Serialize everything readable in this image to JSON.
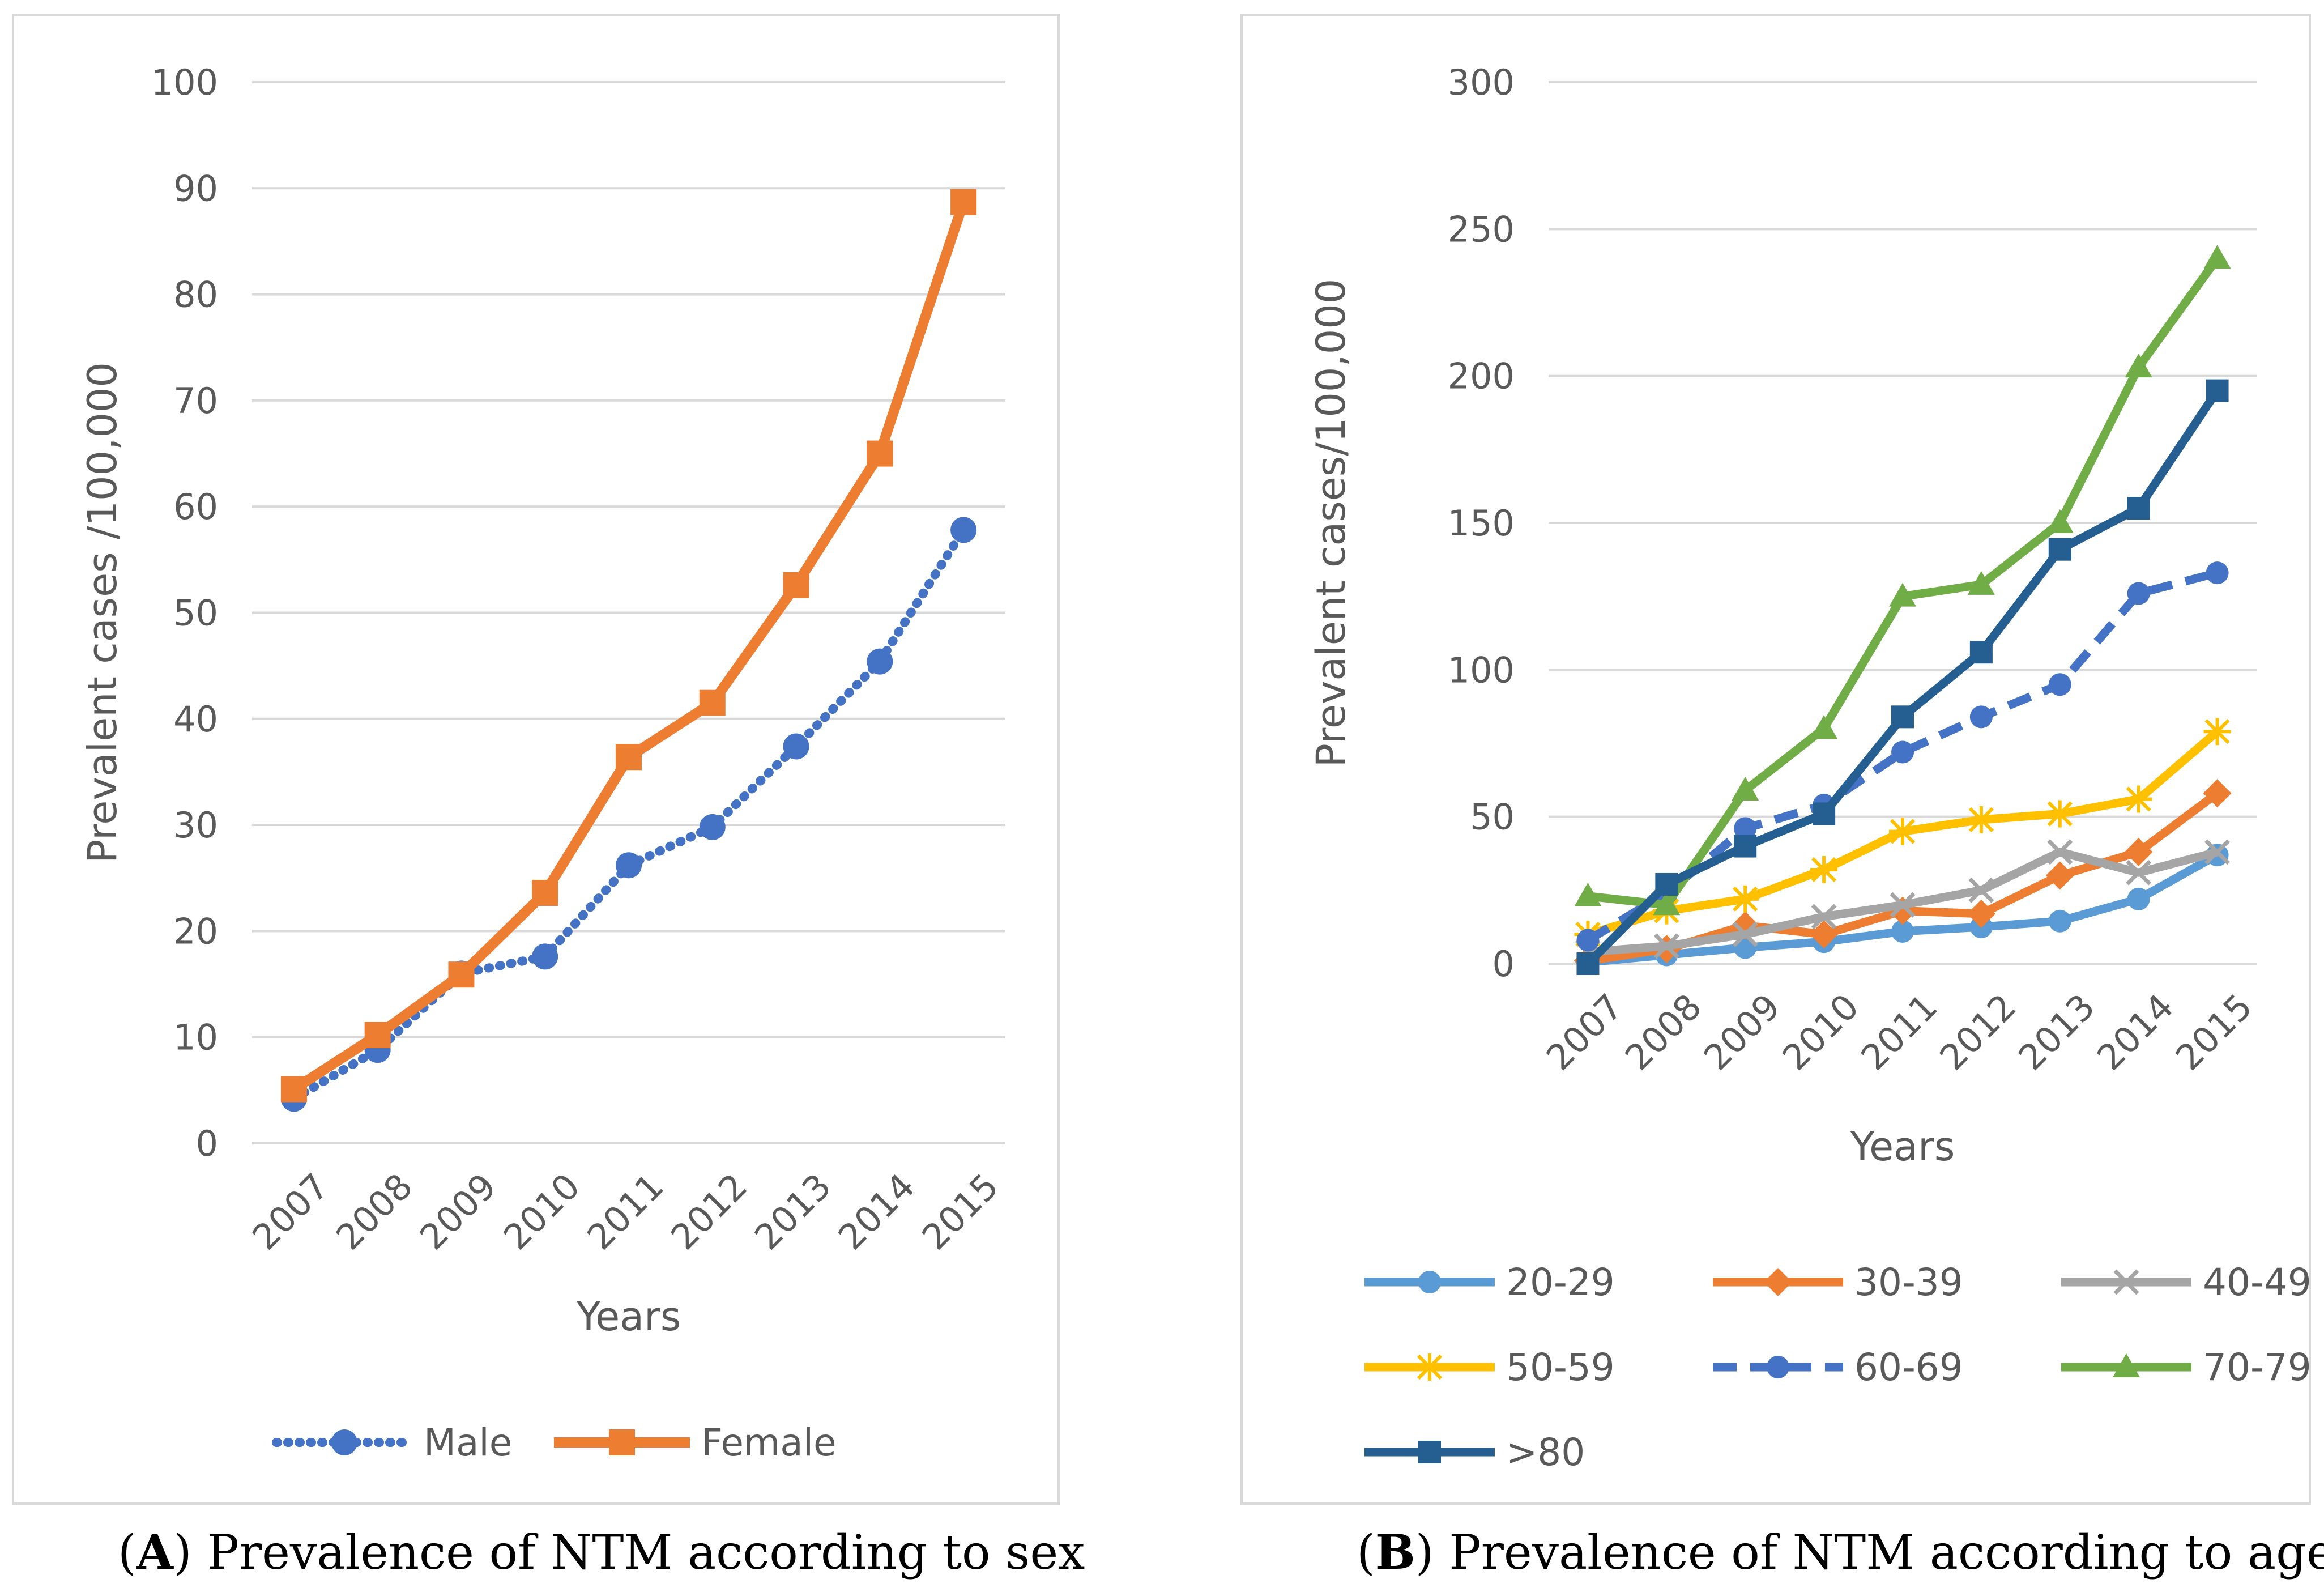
{
  "chart_data": [
    {
      "type": "line",
      "panel_label": "A",
      "caption": ") Prevalence of NTM according to sex",
      "title": "",
      "xlabel": "Years",
      "ylabel": "Prevalent cases /100,000",
      "ylim": [
        0,
        100
      ],
      "yticks": [
        0,
        10,
        20,
        30,
        40,
        50,
        60,
        70,
        80,
        90,
        100
      ],
      "categories": [
        "2007",
        "2008",
        "2009",
        "2010",
        "2011",
        "2012",
        "2013",
        "2014",
        "2015"
      ],
      "legend_position": "bottom",
      "series": [
        {
          "name": "Male",
          "color": "#4472c4",
          "marker": "circle",
          "dash": "dotted",
          "values": [
            4.2,
            8.8,
            16.0,
            17.6,
            26.2,
            29.8,
            37.4,
            45.4,
            57.8
          ]
        },
        {
          "name": "Female",
          "color": "#ed7d31",
          "marker": "square",
          "dash": "solid",
          "values": [
            5.1,
            10.2,
            15.9,
            23.6,
            36.4,
            41.5,
            52.6,
            65.0,
            88.7
          ]
        }
      ]
    },
    {
      "type": "line",
      "panel_label": "B",
      "caption": ") Prevalence of NTM according to age",
      "title": "",
      "xlabel": "Years",
      "ylabel": "Prevalent cases/100,000",
      "ylim": [
        0,
        300
      ],
      "yticks": [
        0,
        50,
        100,
        150,
        200,
        250,
        300
      ],
      "categories": [
        "2007",
        "2008",
        "2009",
        "2010",
        "2011",
        "2012",
        "2013",
        "2014",
        "2015"
      ],
      "legend_position": "bottom",
      "series": [
        {
          "name": "20-29",
          "color": "#5b9bd5",
          "marker": "circle",
          "dash": "solid",
          "values": [
            0.5,
            3,
            5.5,
            7.5,
            11,
            12.5,
            14.5,
            22,
            37
          ]
        },
        {
          "name": "30-39",
          "color": "#ed7d31",
          "marker": "diamond",
          "dash": "solid",
          "values": [
            1,
            5,
            13,
            10,
            18,
            17,
            30,
            38,
            58
          ]
        },
        {
          "name": "40-49",
          "color": "#a5a5a5",
          "marker": "x",
          "dash": "solid",
          "values": [
            4,
            6,
            10,
            16,
            20,
            25,
            38,
            31,
            38
          ]
        },
        {
          "name": "50-59",
          "color": "#ffc000",
          "marker": "star",
          "dash": "solid",
          "values": [
            10,
            18,
            22,
            32,
            45,
            49,
            51,
            56,
            79
          ]
        },
        {
          "name": "60-69",
          "color": "#4472c4",
          "marker": "circle",
          "dash": "dashed",
          "values": [
            8,
            24,
            46,
            54,
            72,
            84,
            95,
            126,
            133
          ]
        },
        {
          "name": "70-79",
          "color": "#70ad47",
          "marker": "triangle",
          "dash": "solid",
          "values": [
            23,
            20,
            59,
            80,
            125,
            129,
            150,
            203,
            240
          ]
        },
        {
          "name": ">80",
          "color": "#255e91",
          "marker": "square",
          "dash": "solid",
          "values": [
            0,
            27,
            40,
            51,
            84,
            106,
            141,
            155,
            195
          ]
        }
      ]
    }
  ]
}
